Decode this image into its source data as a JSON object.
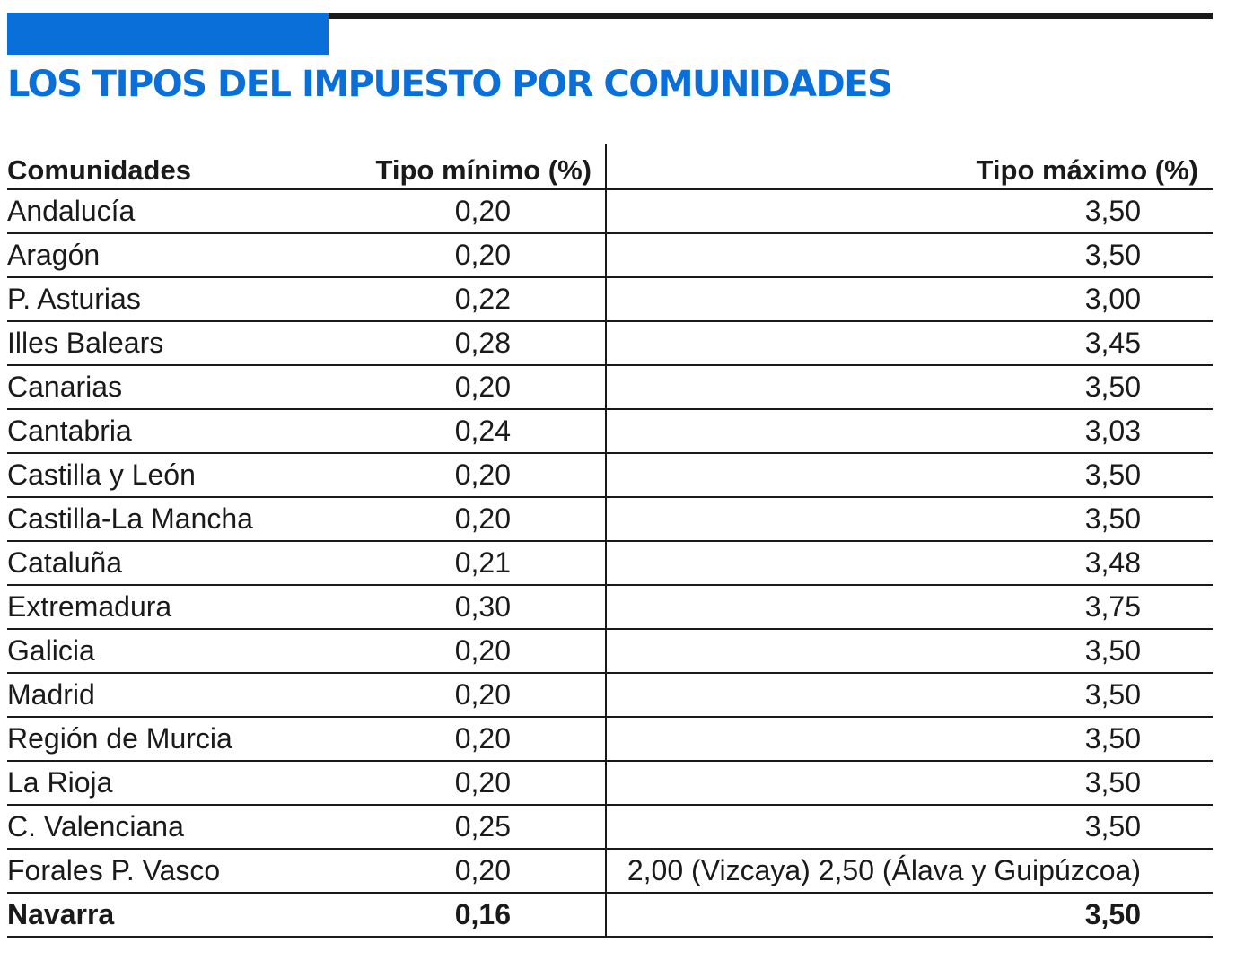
{
  "title": "LOS TIPOS DEL IMPUESTO POR COMUNIDADES",
  "colors": {
    "accent": "#0a6fd8",
    "text": "#1a1a1a"
  },
  "table": {
    "headers": [
      "Comunidades",
      "Tipo mínimo (%)",
      "Tipo máximo (%)"
    ],
    "rows": [
      [
        "Andalucía",
        "0,20",
        "3,50"
      ],
      [
        "Aragón",
        "0,20",
        "3,50"
      ],
      [
        "P. Asturias",
        "0,22",
        "3,00"
      ],
      [
        "Illes Balears",
        "0,28",
        "3,45"
      ],
      [
        "Canarias",
        "0,20",
        "3,50"
      ],
      [
        "Cantabria",
        "0,24",
        "3,03"
      ],
      [
        "Castilla y León",
        "0,20",
        "3,50"
      ],
      [
        "Castilla-La Mancha",
        "0,20",
        "3,50"
      ],
      [
        "Cataluña",
        "0,21",
        "3,48"
      ],
      [
        "Extremadura",
        "0,30",
        "3,75"
      ],
      [
        "Galicia",
        "0,20",
        "3,50"
      ],
      [
        "Madrid",
        "0,20",
        "3,50"
      ],
      [
        "Región de Murcia",
        "0,20",
        "3,50"
      ],
      [
        "La Rioja",
        "0,20",
        "3,50"
      ],
      [
        "C. Valenciana",
        "0,25",
        "3,50"
      ],
      [
        "Forales P. Vasco",
        "0,20",
        "2,00 (Vizcaya) 2,50 (Álava y Guipúzcoa)"
      ],
      [
        "Navarra",
        "0,16",
        "3,50"
      ]
    ],
    "bold_rows": [
      16
    ]
  }
}
